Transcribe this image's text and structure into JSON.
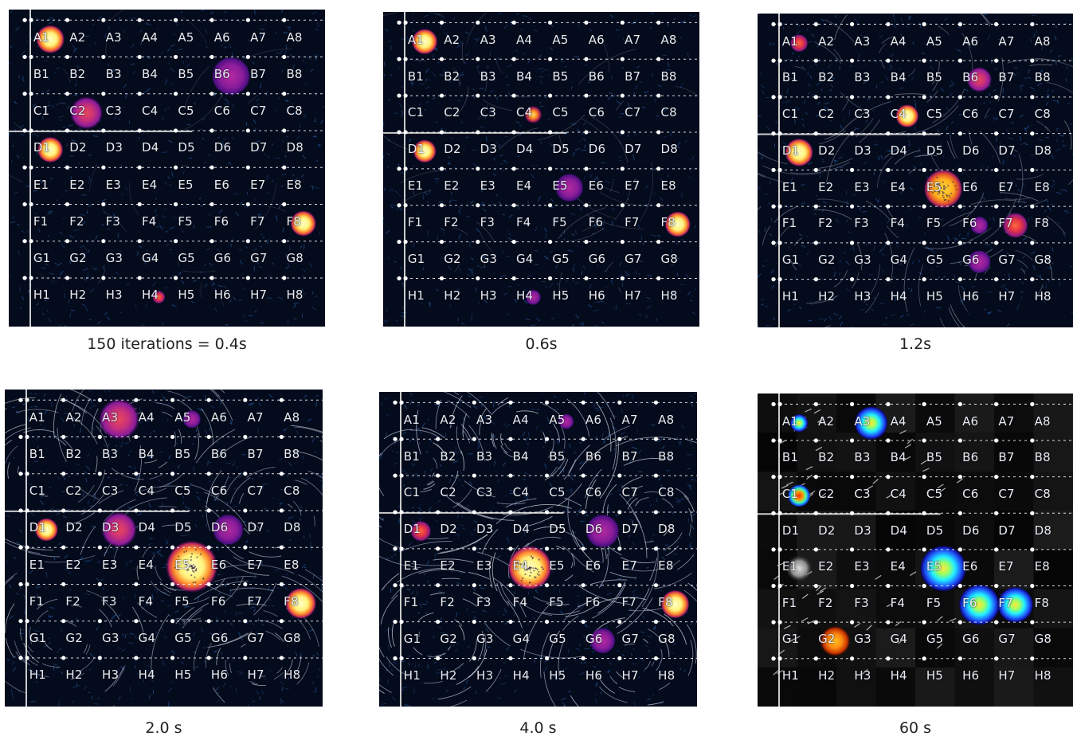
{
  "grid": {
    "rows": [
      "A",
      "B",
      "C",
      "D",
      "E",
      "F",
      "G",
      "H"
    ],
    "cols": [
      "1",
      "2",
      "3",
      "4",
      "5",
      "6",
      "7",
      "8"
    ]
  },
  "panels": [
    {
      "caption": "150 iterations = 0.4s",
      "flow": 0.1,
      "heatmap": false,
      "blobs": [
        {
          "cell": "A1",
          "r": 0.55,
          "kind": "hot"
        },
        {
          "cell": "D1",
          "r": 0.5,
          "kind": "hot"
        },
        {
          "cell": "B6",
          "r": 0.75,
          "kind": "purple"
        },
        {
          "cell": "C2",
          "r": 0.65,
          "kind": "purple-red"
        },
        {
          "cell": "F8",
          "r": 0.5,
          "kind": "hot"
        },
        {
          "cell": "H4",
          "r": 0.25,
          "kind": "red"
        }
      ]
    },
    {
      "caption": "0.6s",
      "flow": 0.2,
      "heatmap": false,
      "blobs": [
        {
          "cell": "A1",
          "r": 0.5,
          "kind": "hot"
        },
        {
          "cell": "D1",
          "r": 0.45,
          "kind": "hot"
        },
        {
          "cell": "C4",
          "r": 0.35,
          "kind": "orange"
        },
        {
          "cell": "E5",
          "r": 0.55,
          "kind": "purple"
        },
        {
          "cell": "F8",
          "r": 0.5,
          "kind": "hot"
        },
        {
          "cell": "H4",
          "r": 0.3,
          "kind": "purple"
        }
      ]
    },
    {
      "caption": "1.2s",
      "flow": 0.5,
      "heatmap": false,
      "blobs": [
        {
          "cell": "A1",
          "r": 0.35,
          "kind": "red"
        },
        {
          "cell": "D1",
          "r": 0.55,
          "kind": "hot"
        },
        {
          "cell": "C4",
          "r": 0.45,
          "kind": "hot"
        },
        {
          "cell": "B6",
          "r": 0.5,
          "kind": "purple-red"
        },
        {
          "cell": "E5",
          "r": 0.75,
          "kind": "hot-orange"
        },
        {
          "cell": "F7",
          "r": 0.5,
          "kind": "red"
        },
        {
          "cell": "F6",
          "r": 0.35,
          "kind": "purple"
        },
        {
          "cell": "G6",
          "r": 0.45,
          "kind": "purple"
        }
      ]
    },
    {
      "caption": "2.0 s",
      "flow": 0.8,
      "heatmap": false,
      "blobs": [
        {
          "cell": "A3",
          "r": 0.8,
          "kind": "purple-red"
        },
        {
          "cell": "A5",
          "r": 0.35,
          "kind": "purple"
        },
        {
          "cell": "D1",
          "r": 0.45,
          "kind": "hot"
        },
        {
          "cell": "D3",
          "r": 0.7,
          "kind": "purple-red"
        },
        {
          "cell": "D6",
          "r": 0.6,
          "kind": "purple"
        },
        {
          "cell": "E5",
          "r": 1.0,
          "kind": "hot"
        },
        {
          "cell": "F8",
          "r": 0.6,
          "kind": "hot"
        }
      ]
    },
    {
      "caption": "4.0 s",
      "flow": 1.0,
      "heatmap": false,
      "blobs": [
        {
          "cell": "A5",
          "r": 0.3,
          "kind": "purple"
        },
        {
          "cell": "D1",
          "r": 0.4,
          "kind": "red"
        },
        {
          "cell": "D6",
          "r": 0.65,
          "kind": "purple"
        },
        {
          "cell": "E4",
          "r": 0.85,
          "kind": "hot"
        },
        {
          "cell": "F8",
          "r": 0.55,
          "kind": "hot"
        },
        {
          "cell": "G6",
          "r": 0.5,
          "kind": "purple"
        }
      ]
    },
    {
      "caption": "60 s",
      "flow": 0.0,
      "heatmap": true,
      "blobs": [
        {
          "cell": "A1",
          "r": 0.35,
          "kind": "jet"
        },
        {
          "cell": "A3",
          "r": 0.65,
          "kind": "jet"
        },
        {
          "cell": "C1",
          "r": 0.45,
          "kind": "jet-hot"
        },
        {
          "cell": "E5",
          "r": 0.9,
          "kind": "jet"
        },
        {
          "cell": "F6",
          "r": 0.8,
          "kind": "jet"
        },
        {
          "cell": "F7",
          "r": 0.7,
          "kind": "jet"
        },
        {
          "cell": "G2",
          "r": 0.6,
          "kind": "jet-warm"
        },
        {
          "cell": "E1",
          "r": 0.5,
          "kind": "grey"
        }
      ]
    }
  ]
}
